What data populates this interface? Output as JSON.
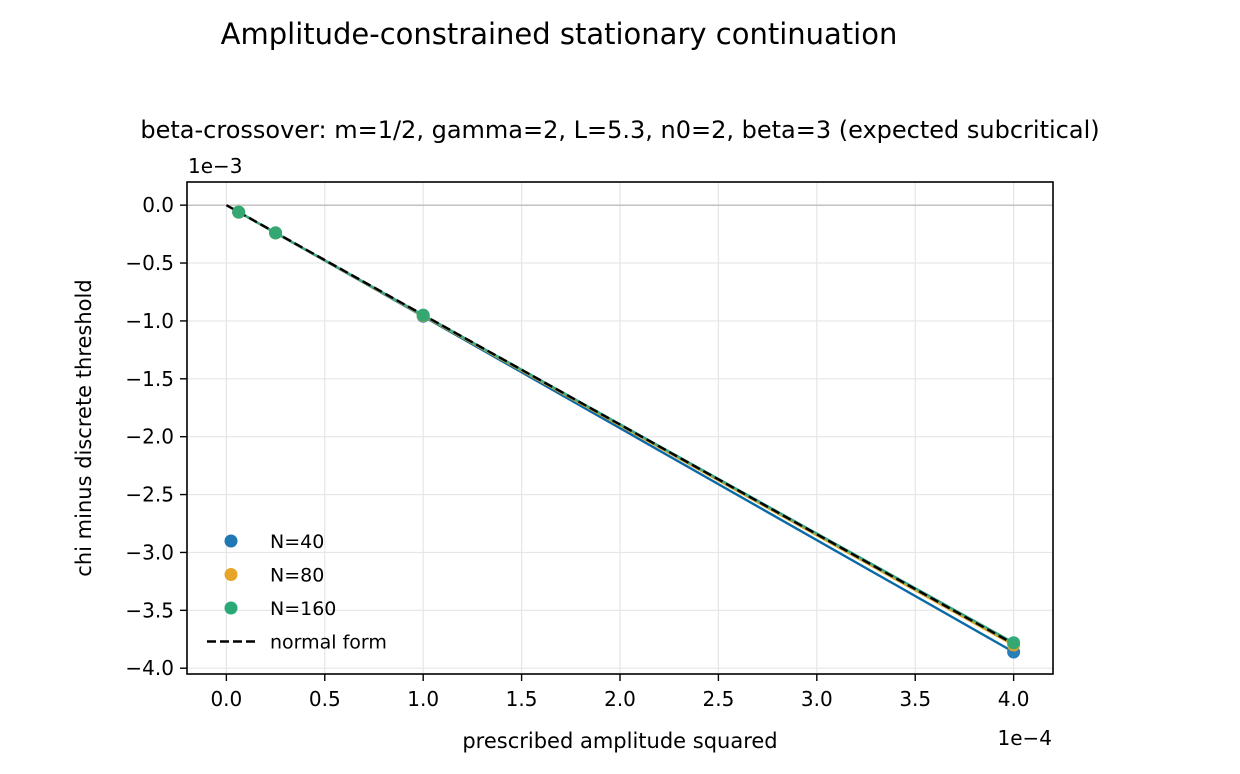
{
  "chart_data": {
    "type": "scatter",
    "suptitle": "Amplitude-constrained stationary continuation",
    "title": "beta-crossover: m=1/2, gamma=2, L=5.3, n0=2, beta=3 (expected subcritical)",
    "xlabel": "prescribed amplitude squared",
    "ylabel": "chi minus discrete threshold",
    "x_offset_label": "1e−4",
    "y_offset_label": "1e−3",
    "x_scale": 0.0001,
    "y_scale": 0.001,
    "xlim": [
      -0.2,
      4.2
    ],
    "ylim": [
      -4.05,
      0.2
    ],
    "x_ticks": [
      0.0,
      0.5,
      1.0,
      1.5,
      2.0,
      2.5,
      3.0,
      3.5,
      4.0
    ],
    "x_tick_labels": [
      "0.0",
      "0.5",
      "1.0",
      "1.5",
      "2.0",
      "2.5",
      "3.0",
      "3.5",
      "4.0"
    ],
    "y_ticks": [
      0.0,
      -0.5,
      -1.0,
      -1.5,
      -2.0,
      -2.5,
      -3.0,
      -3.5,
      -4.0
    ],
    "y_tick_labels": [
      "0.0",
      "−0.5",
      "−1.0",
      "−1.5",
      "−2.0",
      "−2.5",
      "−3.0",
      "−3.5",
      "−4.0"
    ],
    "grid": true,
    "zero_line": 0.0,
    "legend_position": "lower-left",
    "series": [
      {
        "name": "N=40",
        "color": "#1f77b4",
        "line_color": "#0a6aa8",
        "x": [
          0.0625,
          0.25,
          1.0,
          4.0
        ],
        "y": [
          -0.06,
          -0.24,
          -0.96,
          -3.86
        ]
      },
      {
        "name": "N=80",
        "color": "#e6a526",
        "line_color": "#d4a62a",
        "x": [
          0.0625,
          0.25,
          1.0,
          4.0
        ],
        "y": [
          -0.06,
          -0.24,
          -0.955,
          -3.8
        ]
      },
      {
        "name": "N=160",
        "color": "#2aa876",
        "line_color": "#35a887",
        "x": [
          0.0625,
          0.25,
          1.0,
          4.0
        ],
        "y": [
          -0.06,
          -0.24,
          -0.95,
          -3.78
        ]
      }
    ],
    "reference_line": {
      "name": "normal form",
      "style": "dashed",
      "color": "#000000",
      "x": [
        0.0,
        4.0
      ],
      "y": [
        0.0,
        -3.79
      ]
    }
  }
}
